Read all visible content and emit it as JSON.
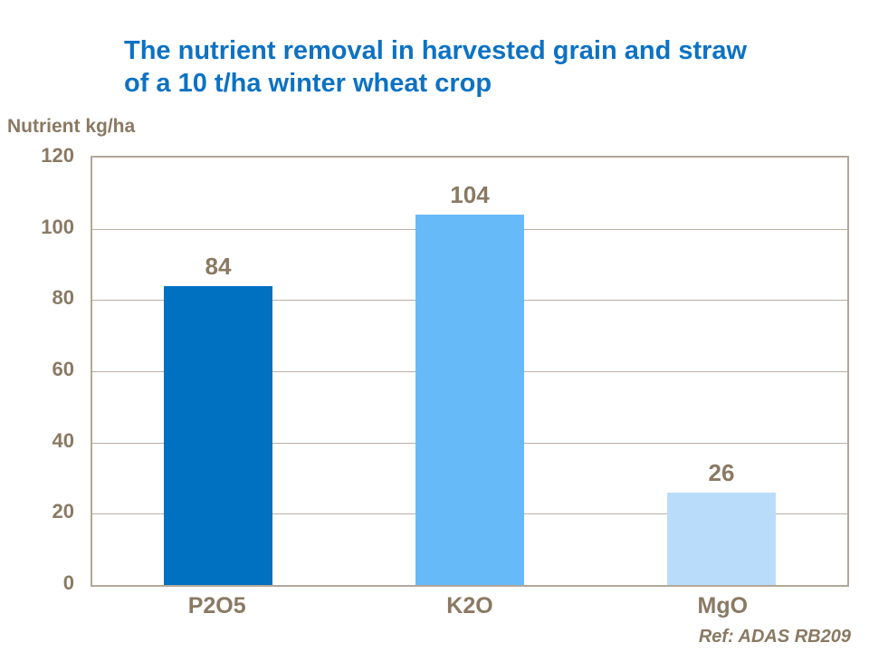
{
  "title": {
    "line1": "The nutrient removal in harvested grain and straw",
    "line2": "of a 10 t/ha winter wheat crop"
  },
  "footer": {
    "ref_label": "Ref: ADAS RB209"
  },
  "colors": {
    "title_blue": "#0d72c3",
    "label_brown": "#8a7963",
    "grid_tan": "#b2a89a",
    "bar_p2o5": "#0070c0",
    "bar_k2o": "#66baf8",
    "bar_mgo": "#b9dcfb"
  },
  "chart_data": {
    "type": "bar",
    "title": "The nutrient removal in harvested grain and straw of a 10 t/ha winter wheat crop",
    "xlabel": "",
    "ylabel": "Nutrient kg/ha",
    "categories": [
      "P2O5",
      "K2O",
      "MgO"
    ],
    "values": [
      84,
      104,
      26
    ],
    "bar_colors": [
      "#0070c0",
      "#66baf8",
      "#b9dcfb"
    ],
    "data_labels": [
      84,
      104,
      26
    ],
    "yticks": [
      0,
      20,
      40,
      60,
      80,
      100,
      120
    ],
    "ylim": [
      0,
      120
    ],
    "grid": true,
    "legend": false,
    "annotation": "Ref: ADAS RB209"
  }
}
